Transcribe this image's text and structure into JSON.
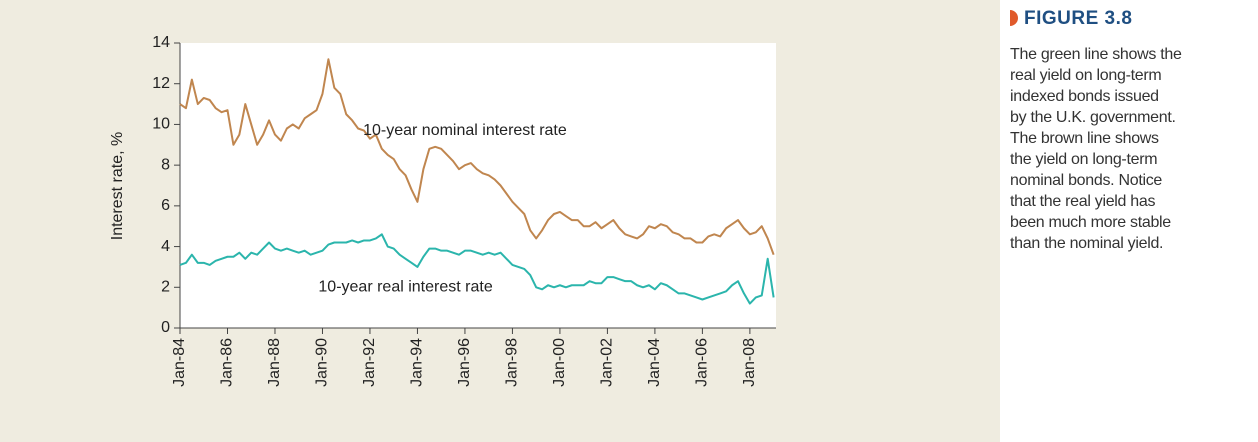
{
  "chart_data": {
    "type": "line",
    "ylabel": "Interest rate, %",
    "x": [
      1984,
      1984.25,
      1984.5,
      1984.75,
      1985,
      1985.25,
      1985.5,
      1985.75,
      1986,
      1986.25,
      1986.5,
      1986.75,
      1987,
      1987.25,
      1987.5,
      1987.75,
      1988,
      1988.25,
      1988.5,
      1988.75,
      1989,
      1989.25,
      1989.5,
      1989.75,
      1990,
      1990.25,
      1990.5,
      1990.75,
      1991,
      1991.25,
      1991.5,
      1991.75,
      1992,
      1992.25,
      1992.5,
      1992.75,
      1993,
      1993.25,
      1993.5,
      1993.75,
      1994,
      1994.25,
      1994.5,
      1994.75,
      1995,
      1995.25,
      1995.5,
      1995.75,
      1996,
      1996.25,
      1996.5,
      1996.75,
      1997,
      1997.25,
      1997.5,
      1997.75,
      1998,
      1998.25,
      1998.5,
      1998.75,
      1999,
      1999.25,
      1999.5,
      1999.75,
      2000,
      2000.25,
      2000.5,
      2000.75,
      2001,
      2001.25,
      2001.5,
      2001.75,
      2002,
      2002.25,
      2002.5,
      2002.75,
      2003,
      2003.25,
      2003.5,
      2003.75,
      2004,
      2004.25,
      2004.5,
      2004.75,
      2005,
      2005.25,
      2005.5,
      2005.75,
      2006,
      2006.25,
      2006.5,
      2006.75,
      2007,
      2007.25,
      2007.5,
      2007.75,
      2008,
      2008.25,
      2008.5,
      2008.75,
      2009
    ],
    "series": [
      {
        "name": "10-year nominal interest rate",
        "color": "#c0864f",
        "values": [
          11.0,
          10.8,
          12.2,
          11.0,
          11.3,
          11.2,
          10.8,
          10.6,
          10.7,
          9.0,
          9.5,
          11.0,
          10.0,
          9.0,
          9.5,
          10.2,
          9.5,
          9.2,
          9.8,
          10.0,
          9.8,
          10.3,
          10.5,
          10.7,
          11.5,
          13.2,
          11.8,
          11.5,
          10.5,
          10.2,
          9.8,
          9.7,
          9.3,
          9.5,
          8.8,
          8.5,
          8.3,
          7.8,
          7.5,
          6.8,
          6.2,
          7.8,
          8.8,
          8.9,
          8.8,
          8.5,
          8.2,
          7.8,
          8.0,
          8.1,
          7.8,
          7.6,
          7.5,
          7.3,
          7.0,
          6.6,
          6.2,
          5.9,
          5.6,
          4.8,
          4.4,
          4.8,
          5.3,
          5.6,
          5.7,
          5.5,
          5.3,
          5.3,
          5.0,
          5.0,
          5.2,
          4.9,
          5.1,
          5.3,
          4.9,
          4.6,
          4.5,
          4.4,
          4.6,
          5.0,
          4.9,
          5.1,
          5.0,
          4.7,
          4.6,
          4.4,
          4.4,
          4.2,
          4.2,
          4.5,
          4.6,
          4.5,
          4.9,
          5.1,
          5.3,
          4.9,
          4.6,
          4.7,
          5.0,
          4.4,
          3.6
        ]
      },
      {
        "name": "10-year real interest rate",
        "color": "#2bb5ac",
        "values": [
          3.1,
          3.2,
          3.6,
          3.2,
          3.2,
          3.1,
          3.3,
          3.4,
          3.5,
          3.5,
          3.7,
          3.4,
          3.7,
          3.6,
          3.9,
          4.2,
          3.9,
          3.8,
          3.9,
          3.8,
          3.7,
          3.8,
          3.6,
          3.7,
          3.8,
          4.1,
          4.2,
          4.2,
          4.2,
          4.3,
          4.2,
          4.3,
          4.3,
          4.4,
          4.6,
          4.0,
          3.9,
          3.6,
          3.4,
          3.2,
          3.0,
          3.5,
          3.9,
          3.9,
          3.8,
          3.8,
          3.7,
          3.6,
          3.8,
          3.8,
          3.7,
          3.6,
          3.7,
          3.6,
          3.7,
          3.4,
          3.1,
          3.0,
          2.9,
          2.6,
          2.0,
          1.9,
          2.1,
          2.0,
          2.1,
          2.0,
          2.1,
          2.1,
          2.1,
          2.3,
          2.2,
          2.2,
          2.5,
          2.5,
          2.4,
          2.3,
          2.3,
          2.1,
          2.0,
          2.1,
          1.9,
          2.2,
          2.1,
          1.9,
          1.7,
          1.7,
          1.6,
          1.5,
          1.4,
          1.5,
          1.6,
          1.7,
          1.8,
          2.1,
          2.3,
          1.7,
          1.2,
          1.5,
          1.6,
          3.4,
          1.5
        ]
      }
    ],
    "annotations": [
      {
        "text": "10-year nominal interest rate",
        "x": 1996,
        "y": 9.7
      },
      {
        "text": "10-year real interest rate",
        "x": 1993.5,
        "y": 2.0
      }
    ],
    "xlim": [
      1984,
      2009.1
    ],
    "xticks": [
      {
        "value": 1984,
        "label": "Jan-84"
      },
      {
        "value": 1986,
        "label": "Jan-86"
      },
      {
        "value": 1988,
        "label": "Jan-88"
      },
      {
        "value": 1990,
        "label": "Jan-90"
      },
      {
        "value": 1992,
        "label": "Jan-92"
      },
      {
        "value": 1994,
        "label": "Jan-94"
      },
      {
        "value": 1996,
        "label": "Jan-96"
      },
      {
        "value": 1998,
        "label": "Jan-98"
      },
      {
        "value": 2000,
        "label": "Jan-00"
      },
      {
        "value": 2002,
        "label": "Jan-02"
      },
      {
        "value": 2004,
        "label": "Jan-04"
      },
      {
        "value": 2006,
        "label": "Jan-06"
      },
      {
        "value": 2008,
        "label": "Jan-08"
      }
    ],
    "ylim": [
      0,
      14
    ],
    "yticks": [
      0,
      2,
      4,
      6,
      8,
      10,
      12,
      14
    ],
    "grid": false
  },
  "figure": {
    "title": "FIGURE 3.8",
    "caption_lines": [
      "The green line shows the",
      "real yield on long-term",
      "indexed bonds issued",
      "by the U.K. government.",
      "The brown line shows",
      "the yield on long-term",
      "nominal bonds. Notice",
      "that the real yield has",
      "been much more stable",
      "than the nominal yield."
    ]
  }
}
